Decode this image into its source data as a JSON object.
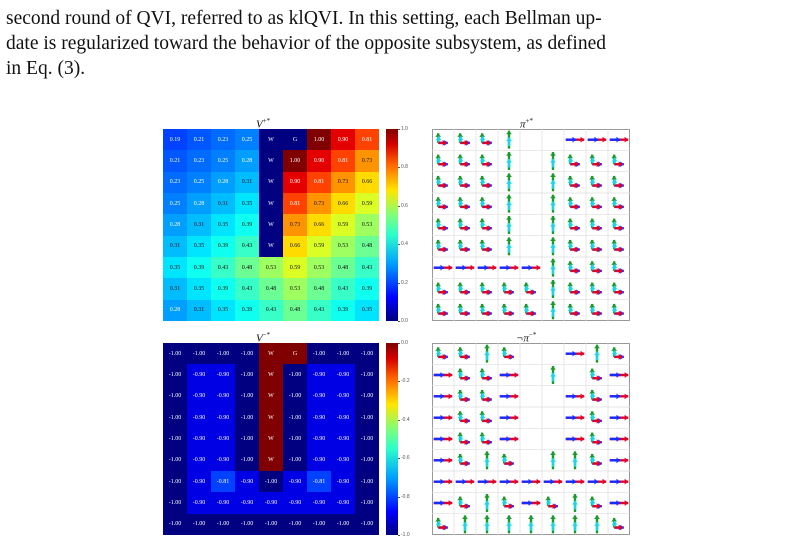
{
  "paragraph": {
    "line1": "second round of QVI, referred to as klQVI. In this setting, each Bellman up-",
    "line2": "date is regularized toward the behavior of the opposite subsystem, as defined",
    "line3": "in Eq. (3)."
  },
  "figure": {
    "vplus": {
      "title": "V",
      "title_sup": "+*",
      "cells": [
        [
          "0.19",
          "0.21",
          "0.23",
          "0.25",
          "W",
          "G",
          "1.00",
          "0.90",
          "0.81"
        ],
        [
          "0.21",
          "0.23",
          "0.25",
          "0.28",
          "W",
          "1.00",
          "0.90",
          "0.81",
          "0.73"
        ],
        [
          "0.23",
          "0.25",
          "0.28",
          "0.31",
          "W",
          "0.90",
          "0.81",
          "0.73",
          "0.66"
        ],
        [
          "0.25",
          "0.28",
          "0.31",
          "0.35",
          "W",
          "0.81",
          "0.73",
          "0.66",
          "0.59"
        ],
        [
          "0.28",
          "0.31",
          "0.35",
          "0.39",
          "W",
          "0.73",
          "0.66",
          "0.59",
          "0.53"
        ],
        [
          "0.31",
          "0.35",
          "0.39",
          "0.43",
          "W",
          "0.66",
          "0.59",
          "0.53",
          "0.48"
        ],
        [
          "0.35",
          "0.39",
          "0.43",
          "0.48",
          "0.53",
          "0.59",
          "0.53",
          "0.48",
          "0.43"
        ],
        [
          "0.31",
          "0.35",
          "0.39",
          "0.43",
          "0.48",
          "0.53",
          "0.48",
          "0.43",
          "0.39"
        ],
        [
          "0.28",
          "0.31",
          "0.35",
          "0.39",
          "0.43",
          "0.48",
          "0.43",
          "0.39",
          "0.35"
        ]
      ],
      "cmap_range": [
        0.0,
        1.0
      ],
      "colorbar_ticks": [
        "1.0",
        "0.8",
        "0.6",
        "0.4",
        "0.2",
        "0.0"
      ]
    },
    "vminus": {
      "title": "V",
      "title_sup": "−*",
      "cells": [
        [
          "-1.00",
          "-1.00",
          "-1.00",
          "-1.00",
          "W",
          "G",
          "-1.00",
          "-1.00",
          "-1.00"
        ],
        [
          "-1.00",
          "-0.90",
          "-0.90",
          "-1.00",
          "W",
          "-1.00",
          "-0.90",
          "-0.90",
          "-1.00"
        ],
        [
          "-1.00",
          "-0.90",
          "-0.90",
          "-1.00",
          "W",
          "-1.00",
          "-0.90",
          "-0.90",
          "-1.00"
        ],
        [
          "-1.00",
          "-0.90",
          "-0.90",
          "-1.00",
          "W",
          "-1.00",
          "-0.90",
          "-0.90",
          "-1.00"
        ],
        [
          "-1.00",
          "-0.90",
          "-0.90",
          "-1.00",
          "W",
          "-1.00",
          "-0.90",
          "-0.90",
          "-1.00"
        ],
        [
          "-1.00",
          "-0.90",
          "-0.90",
          "-1.00",
          "W",
          "-1.00",
          "-0.90",
          "-0.90",
          "-1.00"
        ],
        [
          "-1.00",
          "-0.90",
          "-0.81",
          "-0.90",
          "-1.00",
          "-0.90",
          "-0.81",
          "-0.90",
          "-1.00"
        ],
        [
          "-1.00",
          "-0.90",
          "-0.90",
          "-0.90",
          "-0.90",
          "-0.90",
          "-0.90",
          "-0.90",
          "-1.00"
        ],
        [
          "-1.00",
          "-1.00",
          "-1.00",
          "-1.00",
          "-1.00",
          "-1.00",
          "-1.00",
          "-1.00",
          "-1.00"
        ]
      ],
      "cmap_range": [
        -1.0,
        0.0
      ],
      "colorbar_ticks": [
        "0.0",
        "-0.2",
        "-0.4",
        "-0.6",
        "-0.8",
        "-1.0"
      ]
    },
    "piplus": {
      "title": "π",
      "title_sup": "+*",
      "arrows": [
        [
          "ru",
          "ru",
          "ru",
          "u",
          "",
          "",
          "r",
          "r",
          "r"
        ],
        [
          "ru",
          "ru",
          "ru",
          "u",
          "",
          "u",
          "ru",
          "ru",
          "ru"
        ],
        [
          "ru",
          "ru",
          "ru",
          "u",
          "",
          "u",
          "ru",
          "ru",
          "ru"
        ],
        [
          "ru",
          "ru",
          "ru",
          "u",
          "",
          "u",
          "ru",
          "ru",
          "ru"
        ],
        [
          "ru",
          "ru",
          "ru",
          "u",
          "",
          "u",
          "ru",
          "ru",
          "ru"
        ],
        [
          "ru",
          "ru",
          "ru",
          "u",
          "",
          "u",
          "ru",
          "ru",
          "ru"
        ],
        [
          "r",
          "r",
          "r",
          "r",
          "r",
          "u",
          "ru",
          "ru",
          "ru"
        ],
        [
          "ru",
          "ru",
          "ru",
          "ru",
          "ru",
          "u",
          "ru",
          "ru",
          "ru"
        ],
        [
          "ru",
          "ru",
          "ru",
          "ru",
          "ru",
          "u",
          "ru",
          "ru",
          "ru"
        ]
      ]
    },
    "piminus": {
      "title": "¬π",
      "title_sup": "−*",
      "arrows": [
        [
          "ru",
          "ru",
          "u",
          "ru",
          "",
          "",
          "r",
          "u",
          "ru"
        ],
        [
          "r",
          "ru",
          "ru",
          "r",
          "",
          "u",
          "",
          "ru",
          "r"
        ],
        [
          "r",
          "ru",
          "ru",
          "r",
          "",
          "",
          "r",
          "ru",
          "r"
        ],
        [
          "r",
          "ru",
          "ru",
          "r",
          "",
          "",
          "r",
          "ru",
          "r"
        ],
        [
          "r",
          "ru",
          "ru",
          "r",
          "",
          "",
          "r",
          "ru",
          "r"
        ],
        [
          "r",
          "ru",
          "u",
          "ru",
          "",
          "u",
          "u",
          "ru",
          "r"
        ],
        [
          "r",
          "r",
          "r",
          "r",
          "r",
          "r",
          "r",
          "r",
          "r"
        ],
        [
          "r",
          "ru",
          "u",
          "ru",
          "r",
          "ru",
          "u",
          "ru",
          "r"
        ],
        [
          "ru",
          "u",
          "u",
          "u",
          "u",
          "u",
          "u",
          "u",
          "ru"
        ]
      ]
    }
  }
}
